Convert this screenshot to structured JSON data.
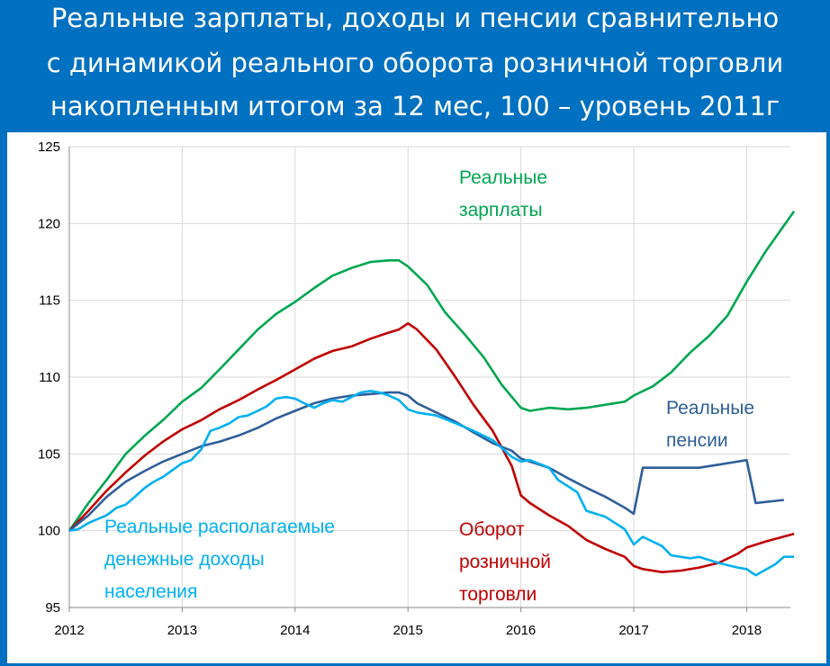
{
  "title_lines": [
    "Реальные зарплаты, доходы и пенсии сравнительно",
    "с динамикой реального оборота розничной торговли",
    "накопленным итогом за 12 мес, 100 – уровень 2011г"
  ],
  "chart_data": {
    "type": "line",
    "x_ticks": [
      "2012",
      "2013",
      "2014",
      "2015",
      "2016",
      "2017",
      "2018"
    ],
    "y_ticks": [
      "125",
      "120",
      "115",
      "110",
      "105",
      "100",
      "95"
    ],
    "ylim": [
      95,
      125
    ],
    "xlim": [
      2012,
      2018.42
    ],
    "grid": true,
    "series": [
      {
        "name": "Реальные зарплаты",
        "label_lines": [
          "Реальные",
          "зарплаты"
        ],
        "color": "#00a651",
        "x": [
          2012,
          2012.17,
          2012.33,
          2012.5,
          2012.67,
          2012.83,
          2013,
          2013.17,
          2013.33,
          2013.5,
          2013.67,
          2013.83,
          2014,
          2014.17,
          2014.33,
          2014.5,
          2014.67,
          2014.83,
          2014.92,
          2015,
          2015.17,
          2015.33,
          2015.5,
          2015.67,
          2015.83,
          2016,
          2016.08,
          2016.25,
          2016.42,
          2016.58,
          2016.75,
          2016.92,
          2017,
          2017.17,
          2017.33,
          2017.5,
          2017.67,
          2017.83,
          2018,
          2018.17,
          2018.42
        ],
        "y": [
          100,
          101.8,
          103.3,
          105,
          106.2,
          107.2,
          108.4,
          109.3,
          110.5,
          111.8,
          113.1,
          114.1,
          114.9,
          115.8,
          116.6,
          117.1,
          117.5,
          117.6,
          117.6,
          117.2,
          116,
          114.2,
          112.8,
          111.3,
          109.5,
          108,
          107.8,
          108,
          107.9,
          108,
          108.2,
          108.4,
          108.8,
          109.4,
          110.3,
          111.6,
          112.7,
          114,
          116.2,
          118.2,
          120.8
        ]
      },
      {
        "name": "Оборот розничной торговли",
        "label_lines": [
          "Оборот",
          "розничной",
          "торговли"
        ],
        "color": "#c00000",
        "x": [
          2012,
          2012.17,
          2012.33,
          2012.5,
          2012.67,
          2012.83,
          2013,
          2013.17,
          2013.33,
          2013.5,
          2013.67,
          2013.83,
          2014,
          2014.17,
          2014.33,
          2014.5,
          2014.67,
          2014.83,
          2014.92,
          2015,
          2015.08,
          2015.25,
          2015.42,
          2015.58,
          2015.75,
          2015.92,
          2016,
          2016.08,
          2016.25,
          2016.42,
          2016.58,
          2016.75,
          2016.92,
          2017,
          2017.08,
          2017.25,
          2017.42,
          2017.58,
          2017.75,
          2017.92,
          2018,
          2018.17,
          2018.42
        ],
        "y": [
          100,
          101.3,
          102.6,
          103.8,
          104.9,
          105.8,
          106.6,
          107.2,
          107.9,
          108.5,
          109.2,
          109.8,
          110.5,
          111.2,
          111.7,
          112,
          112.5,
          112.9,
          113.1,
          113.5,
          113.1,
          111.8,
          110,
          108.2,
          106.5,
          104.2,
          102.3,
          101.8,
          101,
          100.3,
          99.4,
          98.8,
          98.3,
          97.7,
          97.5,
          97.3,
          97.4,
          97.6,
          97.9,
          98.5,
          98.9,
          99.3,
          99.8
        ]
      },
      {
        "name": "Реальные пенсии",
        "label_lines": [
          "Реальные",
          "пенсии"
        ],
        "color": "#2e5e99",
        "x": [
          2012,
          2012.17,
          2012.33,
          2012.5,
          2012.67,
          2012.83,
          2013,
          2013.17,
          2013.33,
          2013.5,
          2013.67,
          2013.83,
          2014,
          2014.17,
          2014.33,
          2014.5,
          2014.67,
          2014.83,
          2014.92,
          2015,
          2015.08,
          2015.25,
          2015.42,
          2015.58,
          2015.75,
          2015.92,
          2016,
          2016.08,
          2016.25,
          2016.42,
          2016.58,
          2016.75,
          2016.92,
          2017,
          2017.08,
          2017.25,
          2017.42,
          2017.58,
          2017.75,
          2017.92,
          2018,
          2018.08,
          2018.33
        ],
        "y": [
          100,
          101,
          102.2,
          103.2,
          103.9,
          104.5,
          105,
          105.5,
          105.8,
          106.2,
          106.7,
          107.3,
          107.8,
          108.3,
          108.6,
          108.8,
          108.9,
          109,
          109,
          108.8,
          108.3,
          107.7,
          107.1,
          106.4,
          105.7,
          105.2,
          104.7,
          104.5,
          104.1,
          103.4,
          102.8,
          102.2,
          101.5,
          101.1,
          104.1,
          104.1,
          104.1,
          104.1,
          104.3,
          104.5,
          104.6,
          101.8,
          102
        ]
      },
      {
        "name": "Реальные располагаемые денежные доходы населения",
        "label_lines": [
          "Реальные располагаемые",
          "денежные доходы",
          "населения"
        ],
        "color": "#00b0f0",
        "x": [
          2012,
          2012.08,
          2012.17,
          2012.33,
          2012.42,
          2012.5,
          2012.58,
          2012.67,
          2012.75,
          2012.83,
          2013,
          2013.08,
          2013.17,
          2013.25,
          2013.33,
          2013.42,
          2013.5,
          2013.58,
          2013.67,
          2013.75,
          2013.83,
          2013.92,
          2014,
          2014.08,
          2014.17,
          2014.25,
          2014.33,
          2014.42,
          2014.5,
          2014.58,
          2014.67,
          2014.75,
          2014.83,
          2014.92,
          2015,
          2015.08,
          2015.25,
          2015.42,
          2015.58,
          2015.75,
          2015.92,
          2016,
          2016.08,
          2016.25,
          2016.33,
          2016.5,
          2016.58,
          2016.75,
          2016.92,
          2017,
          2017.08,
          2017.25,
          2017.33,
          2017.5,
          2017.58,
          2017.75,
          2017.92,
          2018,
          2018.08,
          2018.25,
          2018.33,
          2018.42
        ],
        "y": [
          100,
          100.1,
          100.5,
          101,
          101.5,
          101.7,
          102.2,
          102.8,
          103.2,
          103.5,
          104.4,
          104.6,
          105.3,
          106.5,
          106.7,
          107,
          107.4,
          107.5,
          107.8,
          108.1,
          108.6,
          108.7,
          108.6,
          108.3,
          108,
          108.3,
          108.5,
          108.4,
          108.7,
          109,
          109.1,
          109,
          108.8,
          108.5,
          107.9,
          107.7,
          107.5,
          107,
          106.5,
          105.9,
          104.8,
          104.5,
          104.6,
          104.1,
          103.3,
          102.5,
          101.3,
          100.9,
          100.1,
          99.1,
          99.6,
          99,
          98.4,
          98.2,
          98.3,
          97.9,
          97.6,
          97.5,
          97.1,
          97.8,
          98.3,
          98.3
        ]
      }
    ]
  }
}
